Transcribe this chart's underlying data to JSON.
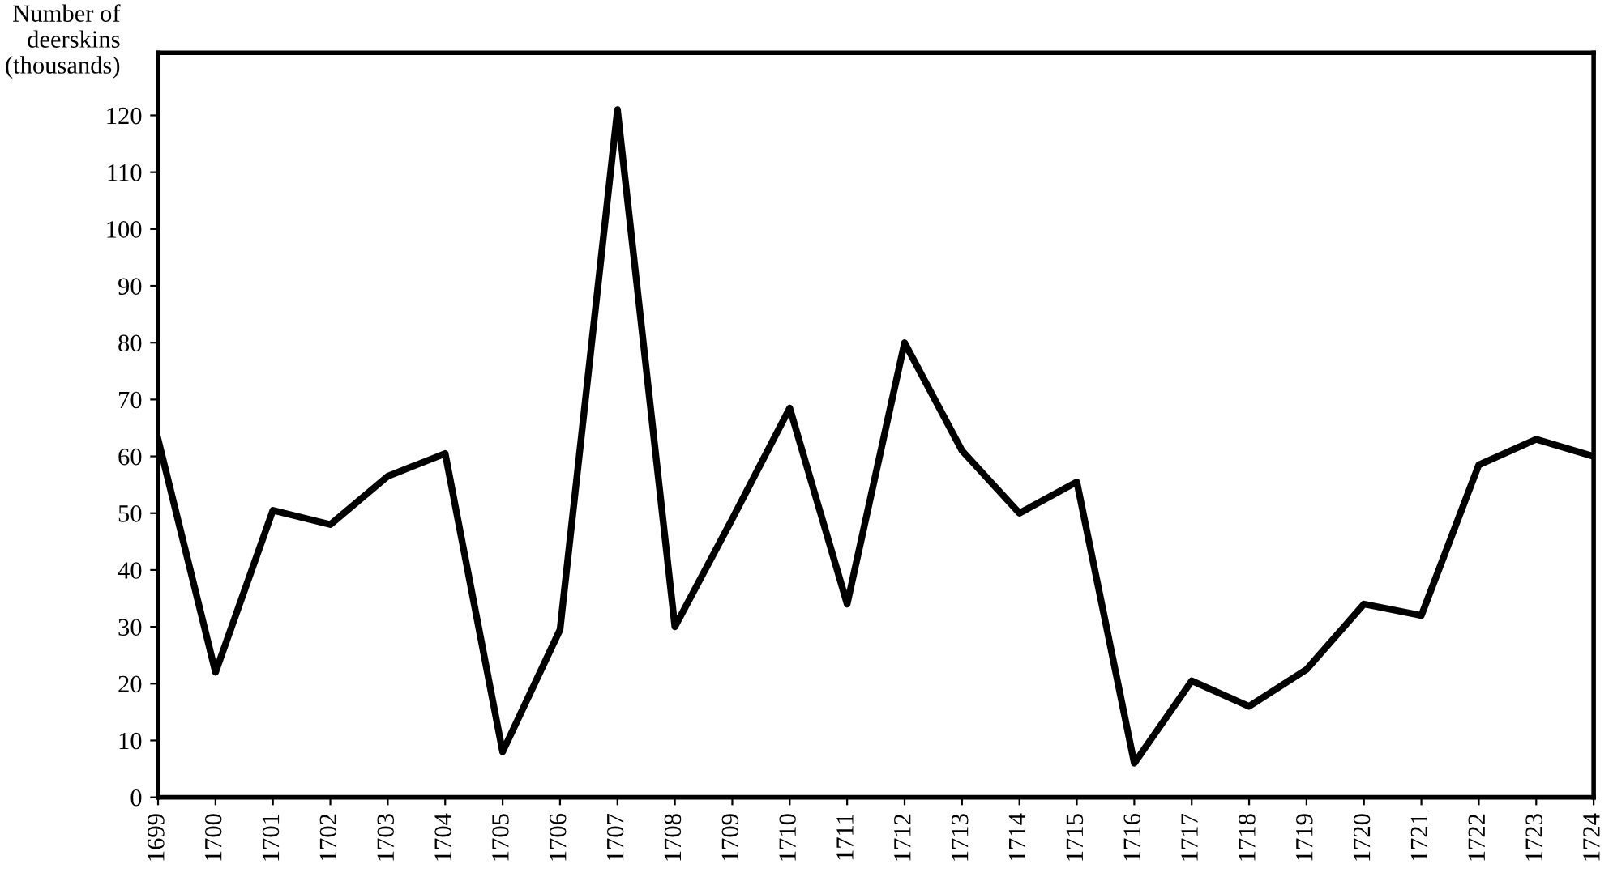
{
  "chart_data": {
    "type": "line",
    "ylabel": "Number of\ndeerskins\n(thousands)",
    "x": [
      1699,
      1700,
      1701,
      1702,
      1703,
      1704,
      1705,
      1706,
      1707,
      1708,
      1709,
      1710,
      1711,
      1712,
      1713,
      1714,
      1715,
      1716,
      1717,
      1718,
      1719,
      1720,
      1721,
      1722,
      1723,
      1724
    ],
    "series": [
      {
        "color": "#000000",
        "values": [
          63,
          22,
          50.5,
          48,
          56.5,
          60.5,
          8,
          29.5,
          121,
          30,
          49,
          68.5,
          34,
          80,
          61,
          50,
          55.5,
          6,
          20.5,
          16,
          22.5,
          34,
          32,
          58.5,
          63,
          60
        ]
      }
    ],
    "xlim": [
      1699,
      1724
    ],
    "xticks": [
      1699,
      1700,
      1701,
      1702,
      1703,
      1704,
      1705,
      1706,
      1707,
      1708,
      1709,
      1710,
      1711,
      1712,
      1713,
      1714,
      1715,
      1716,
      1717,
      1718,
      1719,
      1720,
      1721,
      1722,
      1723,
      1724
    ],
    "ylim": [
      0,
      131
    ],
    "yticks": [
      0,
      10,
      20,
      30,
      40,
      50,
      60,
      70,
      80,
      90,
      100,
      110,
      120
    ],
    "grid": false,
    "legend": false,
    "marker": "none",
    "line_style": "solid"
  }
}
